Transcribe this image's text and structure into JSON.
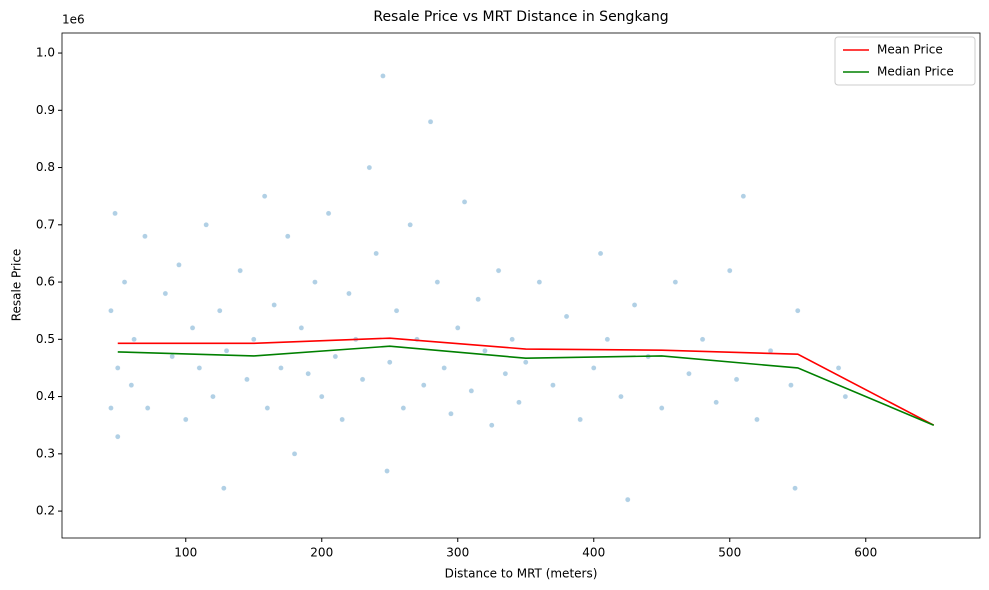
{
  "chart_data": {
    "type": "scatter",
    "title": "Resale Price vs MRT Distance in Sengkang",
    "x_label": "Distance to MRT (meters)",
    "y_label": "Resale Price",
    "y_offset_label": "1e6",
    "xlim": [
      9,
      684
    ],
    "ylim": [
      0.153,
      1.035
    ],
    "xticks": [
      100,
      200,
      300,
      400,
      500,
      600
    ],
    "yticks": [
      0.2,
      0.3,
      0.4,
      0.5,
      0.6,
      0.7,
      0.8,
      0.9,
      {
        "value": 1,
        "label": "1.0"
      }
    ],
    "legend": "upper right",
    "points": {
      "color": "#1f77b4",
      "x": [
        45,
        45,
        48,
        50,
        50,
        55,
        60,
        62,
        70,
        72,
        85,
        90,
        95,
        100,
        105,
        110,
        115,
        120,
        125,
        128,
        130,
        140,
        145,
        150,
        158,
        160,
        165,
        170,
        175,
        180,
        185,
        190,
        195,
        200,
        205,
        210,
        215,
        220,
        225,
        230,
        235,
        240,
        245,
        248,
        250,
        255,
        260,
        265,
        270,
        275,
        280,
        285,
        290,
        295,
        300,
        305,
        310,
        315,
        320,
        325,
        330,
        335,
        340,
        345,
        350,
        360,
        370,
        380,
        390,
        400,
        405,
        410,
        420,
        425,
        430,
        440,
        450,
        460,
        470,
        480,
        490,
        500,
        505,
        510,
        520,
        530,
        545,
        548,
        550,
        580,
        585
      ],
      "y": [
        0.38,
        0.55,
        0.72,
        0.45,
        0.33,
        0.6,
        0.42,
        0.5,
        0.68,
        0.38,
        0.58,
        0.47,
        0.63,
        0.36,
        0.52,
        0.45,
        0.7,
        0.4,
        0.55,
        0.24,
        0.48,
        0.62,
        0.43,
        0.5,
        0.75,
        0.38,
        0.56,
        0.45,
        0.68,
        0.3,
        0.52,
        0.44,
        0.6,
        0.4,
        0.72,
        0.47,
        0.36,
        0.58,
        0.5,
        0.43,
        0.8,
        0.65,
        0.96,
        0.27,
        0.46,
        0.55,
        0.38,
        0.7,
        0.5,
        0.42,
        0.88,
        0.6,
        0.45,
        0.37,
        0.52,
        0.74,
        0.41,
        0.57,
        0.48,
        0.35,
        0.62,
        0.44,
        0.5,
        0.39,
        0.46,
        0.6,
        0.42,
        0.54,
        0.36,
        0.45,
        0.65,
        0.5,
        0.4,
        0.22,
        0.56,
        0.47,
        0.38,
        0.6,
        0.44,
        0.5,
        0.39,
        0.62,
        0.43,
        0.75,
        0.36,
        0.48,
        0.42,
        0.24,
        0.55,
        0.45,
        0.4
      ]
    },
    "series": [
      {
        "name": "Mean Price",
        "color": "#ff0000",
        "x": [
          50,
          150,
          250,
          350,
          450,
          550,
          650
        ],
        "values": [
          0.493,
          0.493,
          0.502,
          0.483,
          0.481,
          0.474,
          0.35
        ]
      },
      {
        "name": "Median Price",
        "color": "#008000",
        "x": [
          50,
          150,
          250,
          350,
          450,
          550,
          650
        ],
        "values": [
          0.478,
          0.471,
          0.488,
          0.467,
          0.471,
          0.45,
          0.35
        ]
      }
    ]
  }
}
